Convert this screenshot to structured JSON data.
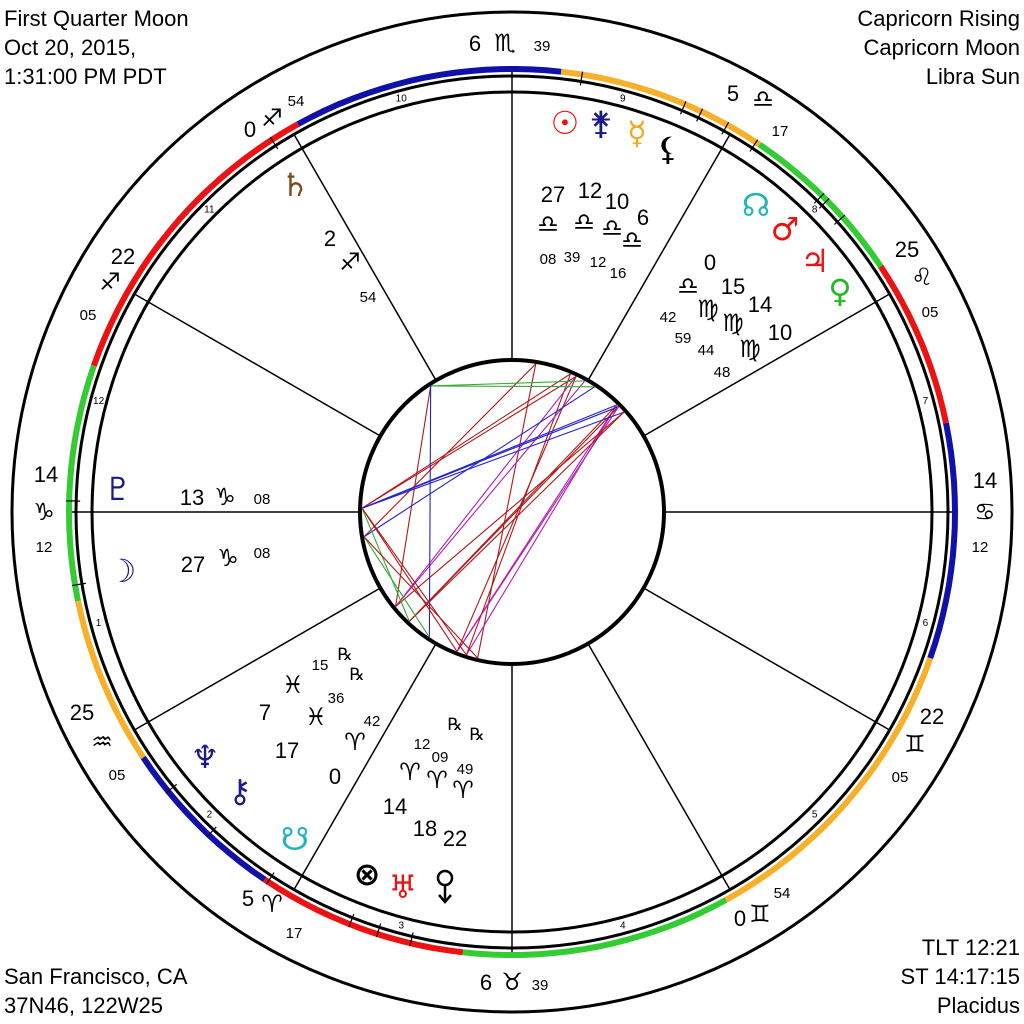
{
  "header": {
    "title": "First Quarter Moon",
    "date": "Oct 20, 2015,",
    "time": "1:31:00 PM PDT",
    "rising": "Capricorn Rising",
    "moon": "Capricorn Moon",
    "sun": "Libra Sun"
  },
  "footer": {
    "place": "San Francisco, CA",
    "coords": "37N46, 122W25",
    "tlt": "TLT 12:21",
    "st": "ST 14:17:15",
    "house_system": "Placidus"
  },
  "colors": {
    "fire": "#ee1111",
    "earth": "#33cc33",
    "air": "#f7b02a",
    "water": "#1111aa"
  },
  "signs": {
    "aries": "♈︎",
    "taurus": "♉︎",
    "gemini": "♊︎",
    "cancer": "♋︎",
    "leo": "♌︎",
    "virgo": "♍︎",
    "libra": "♎︎",
    "scorpio": "♏︎",
    "sagittarius": "♐︎",
    "capricorn": "♑︎",
    "aquarius": "♒︎",
    "pisces": "♓︎"
  },
  "houses": [
    {
      "number": "1",
      "deg": "14",
      "sign": "capricorn",
      "min": "12"
    },
    {
      "number": "2",
      "deg": "25",
      "sign": "aquarius",
      "min": "05"
    },
    {
      "number": "3",
      "deg": "5",
      "sign": "aries",
      "min": "17"
    },
    {
      "number": "4",
      "deg": "6",
      "sign": "taurus",
      "min": "39"
    },
    {
      "number": "5",
      "deg": "0",
      "sign": "gemini",
      "min": "54"
    },
    {
      "number": "6",
      "deg": "22",
      "sign": "gemini",
      "min": "05"
    },
    {
      "number": "7",
      "deg": "14",
      "sign": "cancer",
      "min": "12"
    },
    {
      "number": "8",
      "deg": "25",
      "sign": "leo",
      "min": "05"
    },
    {
      "number": "9",
      "deg": "5",
      "sign": "libra",
      "min": "17"
    },
    {
      "number": "10",
      "deg": "6",
      "sign": "scorpio",
      "min": "39"
    },
    {
      "number": "11",
      "deg": "0",
      "sign": "sagittarius",
      "min": "54"
    },
    {
      "number": "12",
      "deg": "22",
      "sign": "sagittarius",
      "min": "05"
    }
  ],
  "planets": [
    {
      "name": "sun",
      "icon": "sun-icon",
      "symbol": "☉",
      "color": "#ee1111",
      "deg": "27",
      "sign": "libra",
      "min": "08",
      "retro": ""
    },
    {
      "name": "juno",
      "icon": "juno-icon",
      "symbol": "⚵",
      "color": "#1a1a8c",
      "deg": "12",
      "sign": "libra",
      "min": "39",
      "retro": ""
    },
    {
      "name": "mercury",
      "icon": "mercury-icon",
      "symbol": "☿",
      "color": "#f0a820",
      "deg": "10",
      "sign": "libra",
      "min": "12",
      "retro": ""
    },
    {
      "name": "lilith",
      "icon": "lilith-icon",
      "symbol": "⚸",
      "color": "#000000",
      "deg": "6",
      "sign": "libra",
      "min": "16",
      "retro": ""
    },
    {
      "name": "north-node",
      "icon": "north-node-icon",
      "symbol": "☊",
      "color": "#22b5b5",
      "deg": "0",
      "sign": "libra",
      "min": "42",
      "retro": ""
    },
    {
      "name": "mars",
      "icon": "mars-icon",
      "symbol": "♂",
      "color": "#ee1111",
      "deg": "15",
      "sign": "virgo",
      "min": "59",
      "retro": ""
    },
    {
      "name": "jupiter",
      "icon": "jupiter-icon",
      "symbol": "♃",
      "color": "#ee1111",
      "deg": "14",
      "sign": "virgo",
      "min": "44",
      "retro": ""
    },
    {
      "name": "venus",
      "icon": "venus-icon",
      "symbol": "♀",
      "color": "#22bb22",
      "deg": "10",
      "sign": "virgo",
      "min": "48",
      "retro": ""
    },
    {
      "name": "saturn",
      "icon": "saturn-icon",
      "symbol": "♄",
      "color": "#7a4a1a",
      "deg": "2",
      "sign": "sagittarius",
      "min": "54",
      "retro": ""
    },
    {
      "name": "pluto",
      "icon": "pluto-icon",
      "symbol": "♇",
      "color": "#1a1a8c",
      "deg": "13",
      "sign": "capricorn",
      "min": "08",
      "retro": ""
    },
    {
      "name": "moon",
      "icon": "moon-icon",
      "symbol": "☽",
      "color": "#1a1a8c",
      "deg": "27",
      "sign": "capricorn",
      "min": "08",
      "retro": ""
    },
    {
      "name": "neptune",
      "icon": "neptune-icon",
      "symbol": "♆",
      "color": "#1a1a8c",
      "deg": "7",
      "sign": "pisces",
      "min": "15",
      "retro": "℞"
    },
    {
      "name": "chiron",
      "icon": "chiron-icon",
      "symbol": "⚷",
      "color": "#1a1a8c",
      "deg": "17",
      "sign": "pisces",
      "min": "36",
      "retro": "℞"
    },
    {
      "name": "south-node",
      "icon": "south-node-icon",
      "symbol": "☋",
      "color": "#22b5b5",
      "deg": "0",
      "sign": "aries",
      "min": "42",
      "retro": ""
    },
    {
      "name": "part-of-fortune",
      "icon": "part-of-fortune-icon",
      "symbol": "⊗",
      "color": "#000000",
      "deg": "14",
      "sign": "aries",
      "min": "12",
      "retro": ""
    },
    {
      "name": "uranus",
      "icon": "uranus-icon",
      "symbol": "♅",
      "color": "#ee1111",
      "deg": "18",
      "sign": "aries",
      "min": "09",
      "retro": "℞"
    },
    {
      "name": "eris",
      "icon": "eris-icon",
      "symbol": "",
      "color": "#000000",
      "deg": "22",
      "sign": "aries",
      "min": "49",
      "retro": "℞"
    }
  ]
}
